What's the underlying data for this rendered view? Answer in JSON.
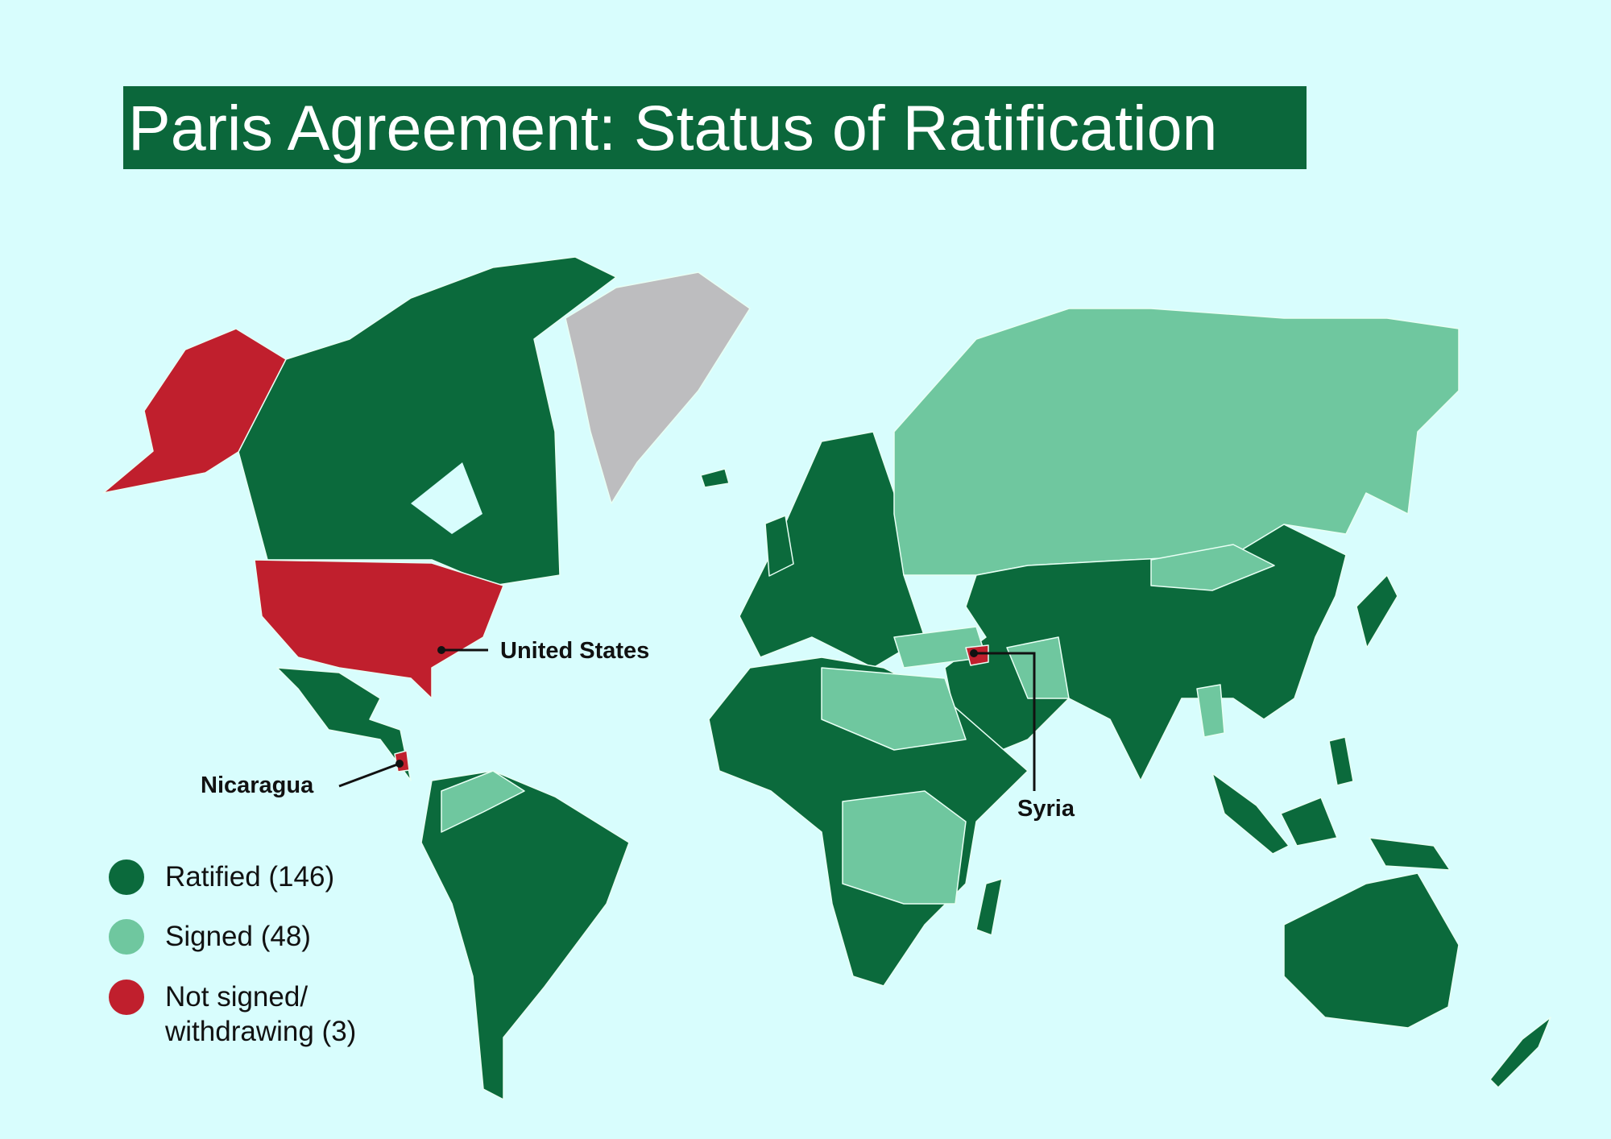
{
  "title": "Paris Agreement: Status of Ratification",
  "colors": {
    "ratified": "#0b6a3c",
    "signed": "#6fc79f",
    "not_signed": "#c01f2d",
    "no_data": "#bdbdbf",
    "ocean": "#d8fdfd",
    "title_bg": "#0b673b"
  },
  "legend": [
    {
      "status": "ratified",
      "label": "Ratified (146)"
    },
    {
      "status": "signed",
      "label": "Signed (48)"
    },
    {
      "status": "not_signed",
      "label": "Not signed/\nwithdrawing (3)"
    }
  ],
  "callouts": {
    "united_states": "United States",
    "nicaragua": "Nicaragua",
    "syria": "Syria"
  }
}
